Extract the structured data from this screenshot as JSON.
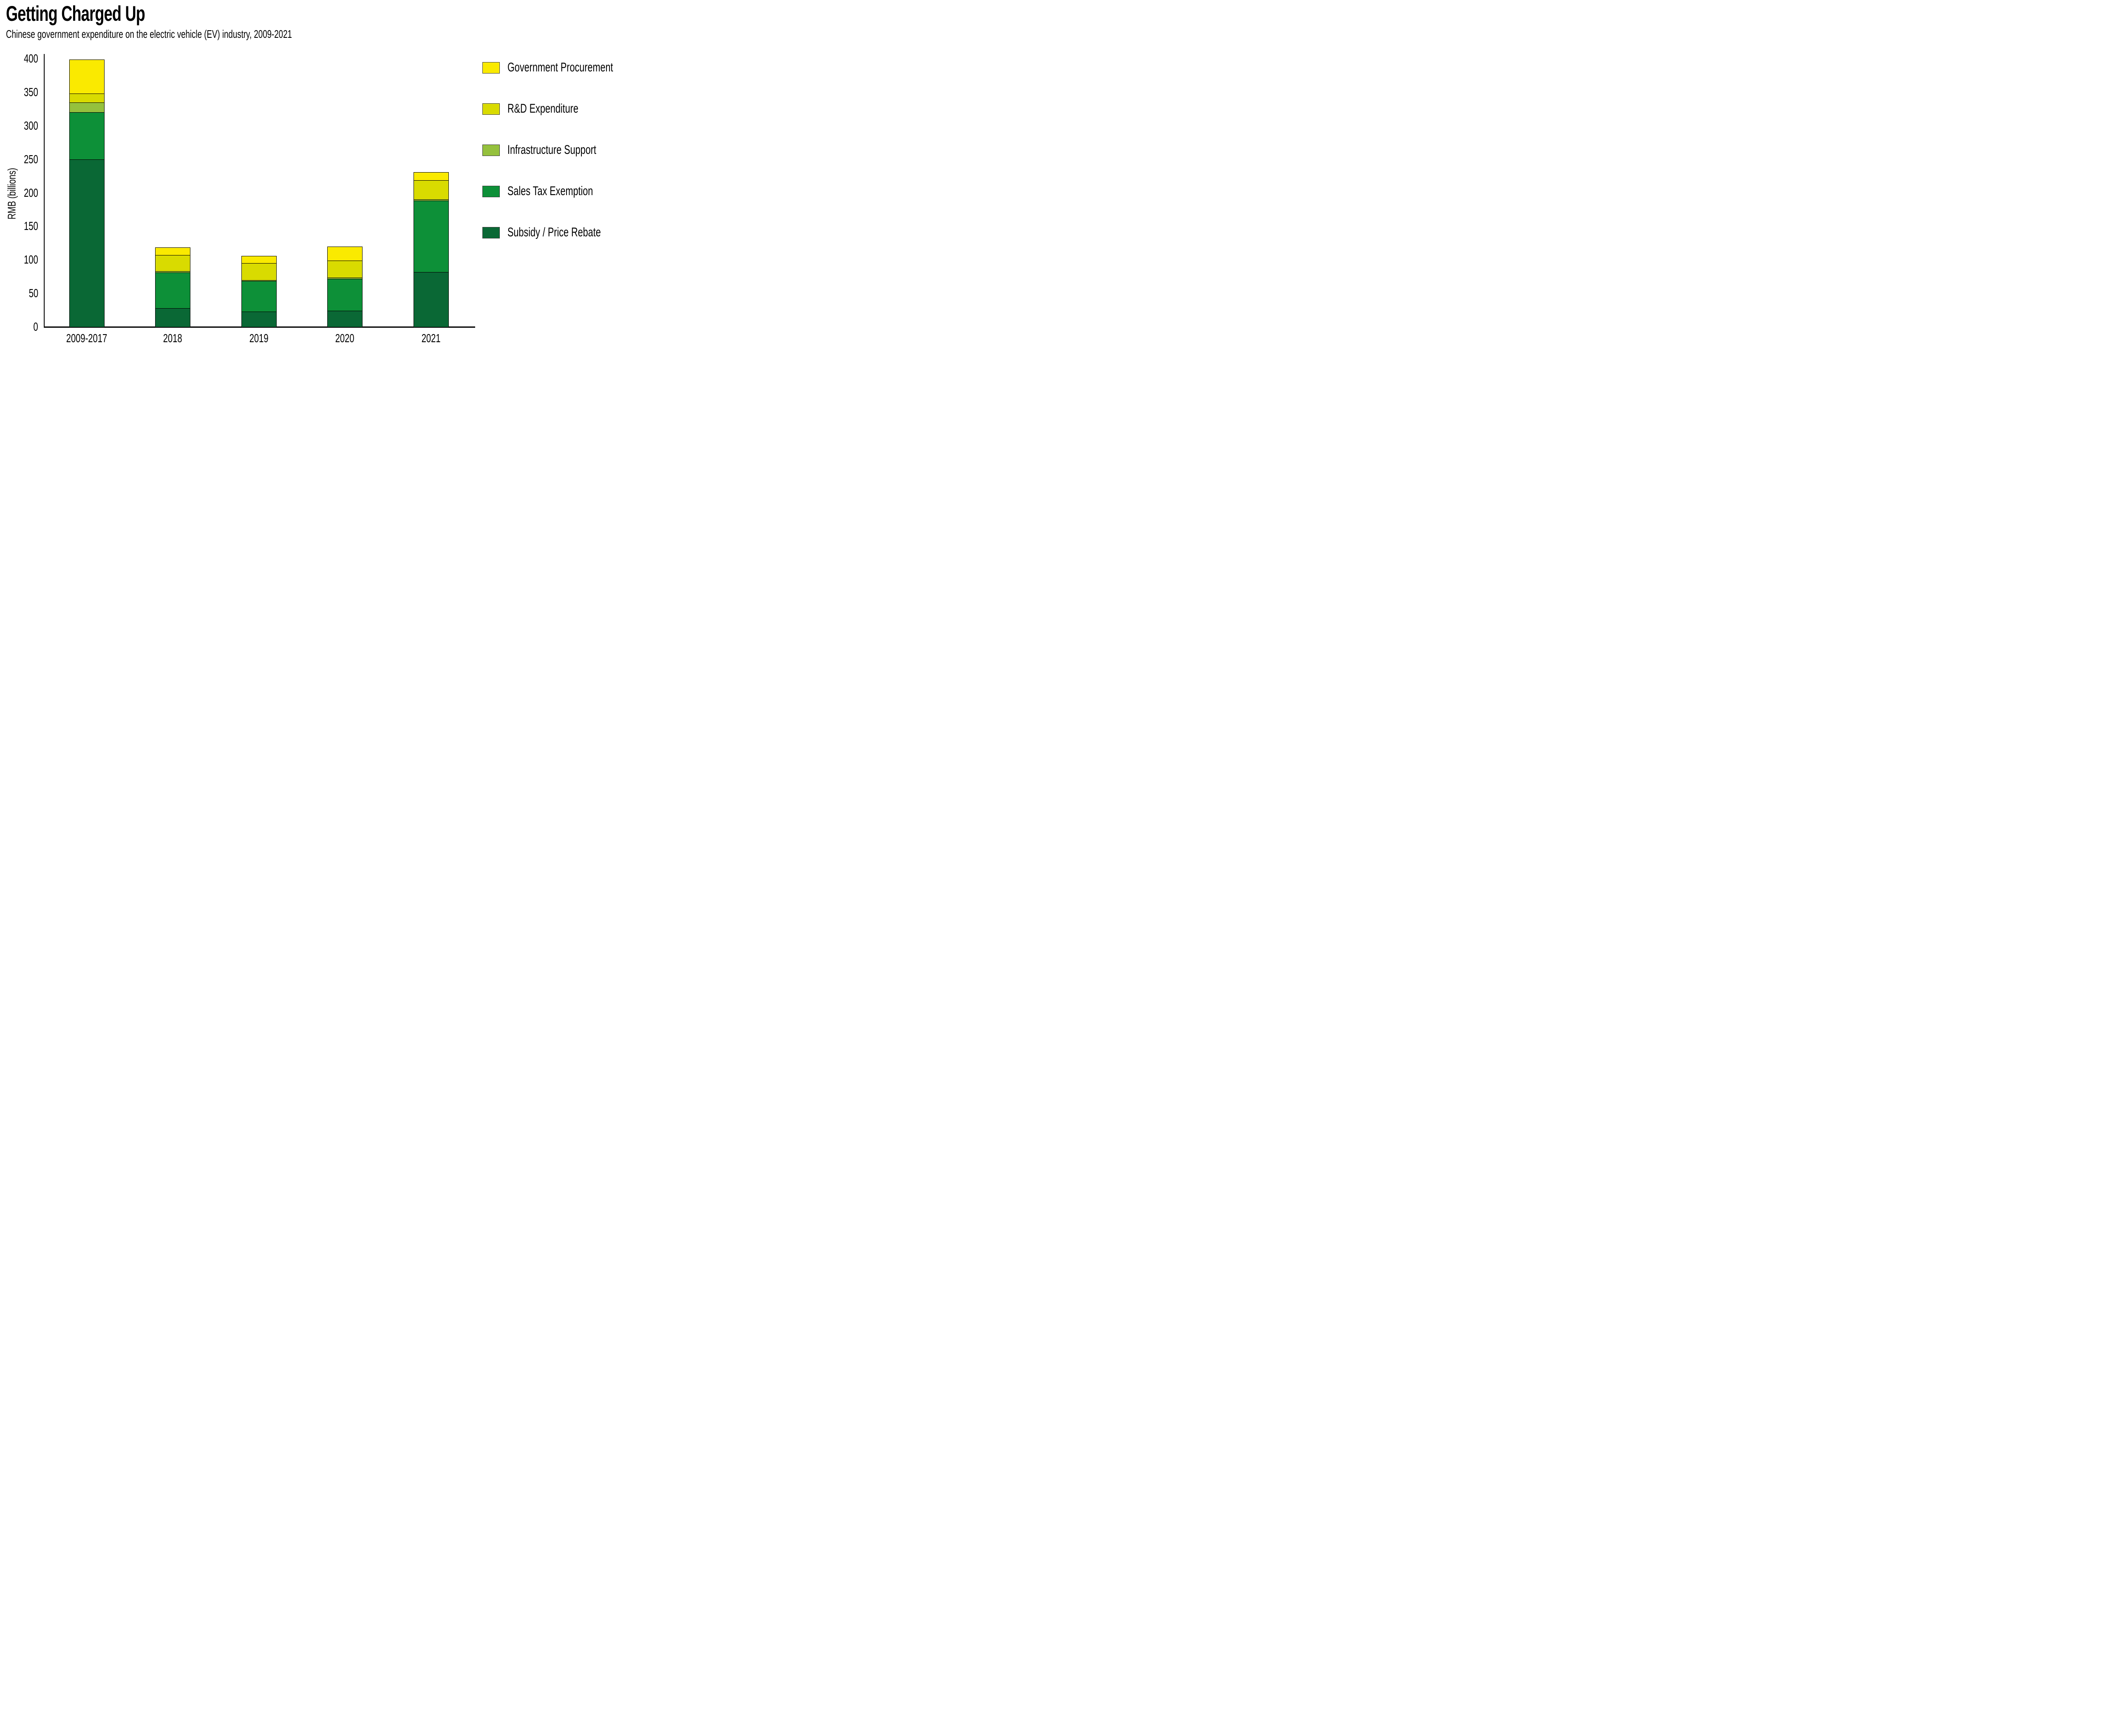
{
  "title": "Getting Charged Up",
  "subtitle": "Chinese government expenditure on the electric vehicle (EV) industry, 2009-2021",
  "colors": {
    "background": "#ffffff",
    "text": "#000000",
    "axis": "#000000",
    "government_procurement": "#FAEA00",
    "rd_expenditure": "#D9DB00",
    "infrastructure_support": "#95C13D",
    "sales_tax_exemption": "#0D9038",
    "subsidy_price_rebate": "#0A6835"
  },
  "chart_data": {
    "type": "bar",
    "stacked": true,
    "title": "Getting Charged Up",
    "subtitle": "Chinese government expenditure on the electric vehicle (EV) industry, 2009-2021",
    "xlabel": "",
    "ylabel": "RMB (billions)",
    "ylim": [
      0,
      400
    ],
    "yticks": [
      0,
      50,
      100,
      150,
      200,
      250,
      300,
      350,
      400
    ],
    "grid": false,
    "legend_position": "right",
    "legend_order_top_to_bottom": [
      "Government Procurement",
      "R&D Expenditure",
      "Infrastructure Support",
      "Sales Tax Exemption",
      "Subsidy / Price Rebate"
    ],
    "categories": [
      "2009-2017",
      "2018",
      "2019",
      "2020",
      "2021"
    ],
    "series": [
      {
        "name": "Subsidy / Price Rebate",
        "color": "#0A6835",
        "values": [
          250,
          28,
          23,
          24,
          82
        ]
      },
      {
        "name": "Sales Tax Exemption",
        "color": "#0D9038",
        "values": [
          70,
          53,
          45.5,
          47.5,
          106
        ]
      },
      {
        "name": "Infrastructure Support",
        "color": "#95C13D",
        "values": [
          15,
          2,
          1.5,
          2,
          2
        ]
      },
      {
        "name": "R&D Expenditure",
        "color": "#D9DB00",
        "values": [
          13,
          24,
          25,
          25.5,
          29
        ]
      },
      {
        "name": "Government Procurement",
        "color": "#FAEA00",
        "values": [
          50,
          11,
          10,
          20,
          11
        ]
      }
    ],
    "bar_totals": [
      398,
      118,
      105,
      119,
      230
    ]
  }
}
